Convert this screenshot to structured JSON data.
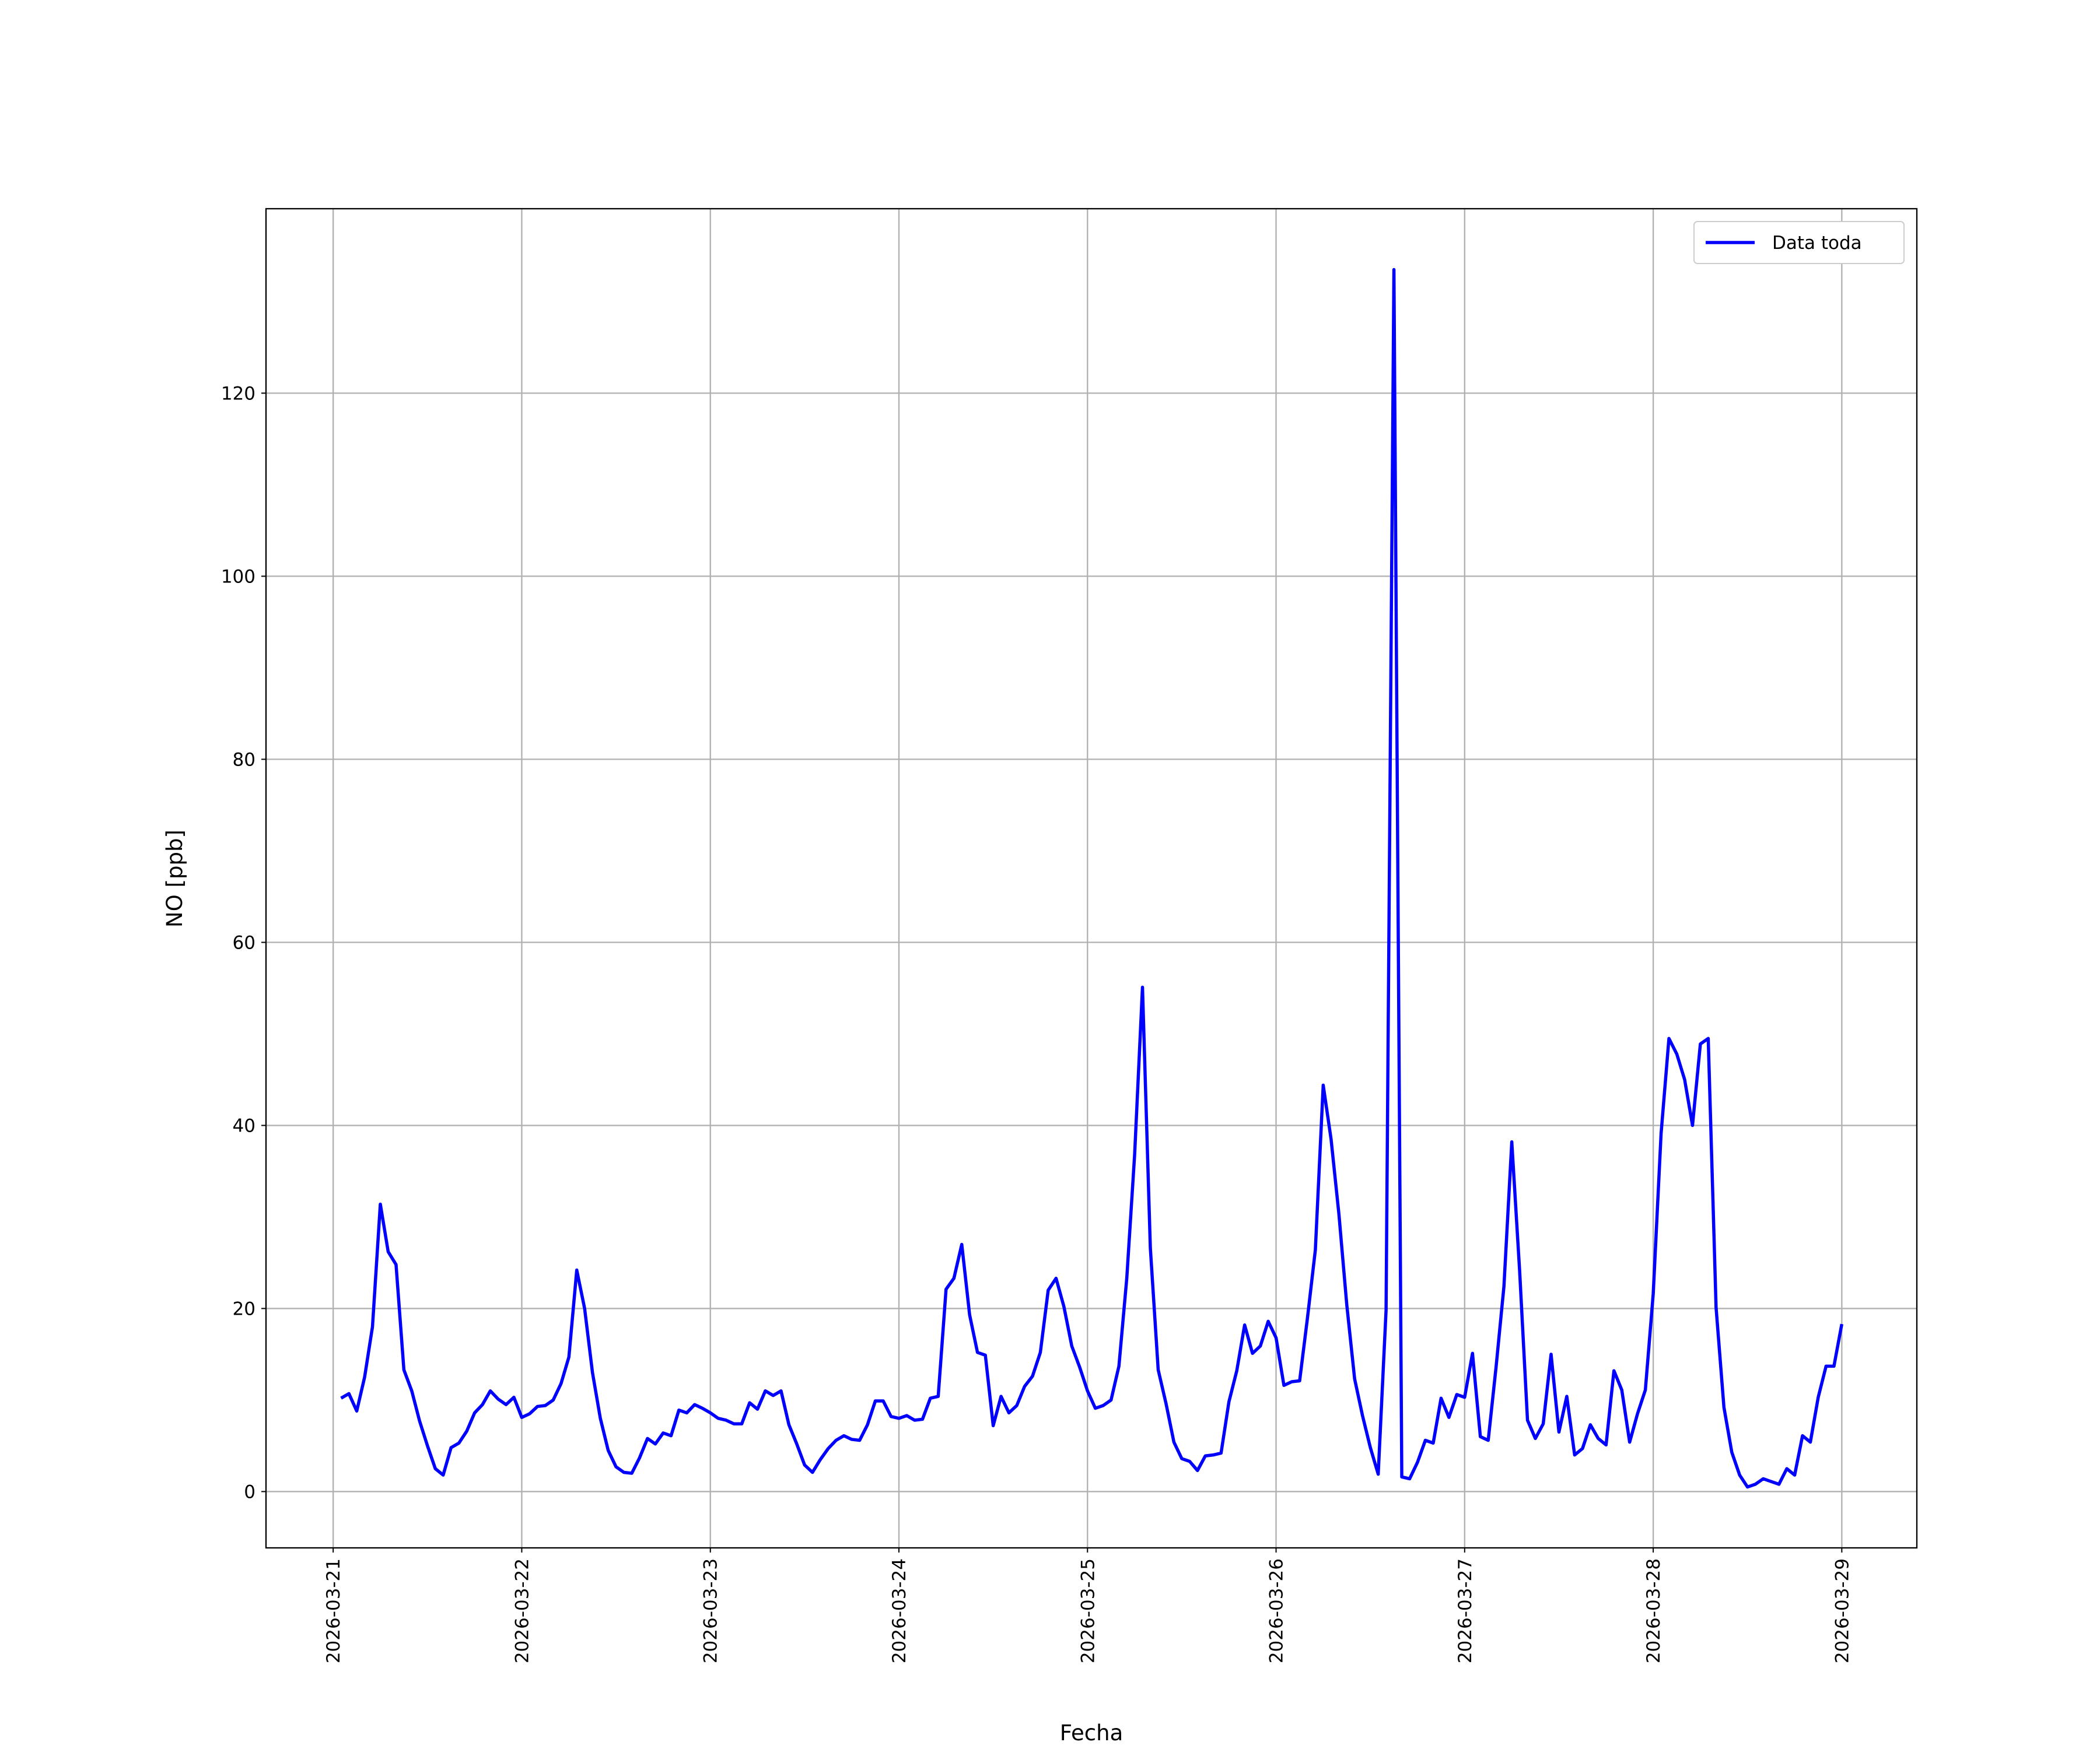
{
  "chart_data": {
    "type": "line",
    "xlabel": "Fecha",
    "ylabel": "NO [ppb]",
    "x": [
      "2026-03-21T01:00",
      "2026-03-21T02:00",
      "2026-03-21T03:00",
      "2026-03-21T04:00",
      "2026-03-21T05:00",
      "2026-03-21T06:00",
      "2026-03-21T07:00",
      "2026-03-21T08:00",
      "2026-03-21T09:00",
      "2026-03-21T10:00",
      "2026-03-21T11:00",
      "2026-03-21T12:00",
      "2026-03-21T13:00",
      "2026-03-21T14:00",
      "2026-03-21T15:00",
      "2026-03-21T16:00",
      "2026-03-21T17:00",
      "2026-03-21T18:00",
      "2026-03-21T19:00",
      "2026-03-21T20:00",
      "2026-03-21T21:00",
      "2026-03-21T22:00",
      "2026-03-21T23:00",
      "2026-03-22T00:00",
      "2026-03-22T01:00",
      "2026-03-22T02:00",
      "2026-03-22T03:00",
      "2026-03-22T04:00",
      "2026-03-22T05:00",
      "2026-03-22T06:00",
      "2026-03-22T07:00",
      "2026-03-22T08:00",
      "2026-03-22T09:00",
      "2026-03-22T10:00",
      "2026-03-22T11:00",
      "2026-03-22T12:00",
      "2026-03-22T13:00",
      "2026-03-22T14:00",
      "2026-03-22T15:00",
      "2026-03-22T16:00",
      "2026-03-22T17:00",
      "2026-03-22T18:00",
      "2026-03-22T19:00",
      "2026-03-22T20:00",
      "2026-03-22T21:00",
      "2026-03-22T22:00",
      "2026-03-22T23:00",
      "2026-03-23T00:00",
      "2026-03-23T01:00",
      "2026-03-23T02:00",
      "2026-03-23T03:00",
      "2026-03-23T04:00",
      "2026-03-23T05:00",
      "2026-03-23T06:00",
      "2026-03-23T07:00",
      "2026-03-23T08:00",
      "2026-03-23T09:00",
      "2026-03-23T10:00",
      "2026-03-23T11:00",
      "2026-03-23T12:00",
      "2026-03-23T13:00",
      "2026-03-23T14:00",
      "2026-03-23T15:00",
      "2026-03-23T16:00",
      "2026-03-23T17:00",
      "2026-03-23T18:00",
      "2026-03-23T19:00",
      "2026-03-23T20:00",
      "2026-03-23T21:00",
      "2026-03-23T22:00",
      "2026-03-23T23:00",
      "2026-03-24T00:00",
      "2026-03-24T01:00",
      "2026-03-24T02:00",
      "2026-03-24T03:00",
      "2026-03-24T04:00",
      "2026-03-24T05:00",
      "2026-03-24T06:00",
      "2026-03-24T07:00",
      "2026-03-24T08:00",
      "2026-03-24T09:00",
      "2026-03-24T10:00",
      "2026-03-24T11:00",
      "2026-03-24T12:00",
      "2026-03-24T13:00",
      "2026-03-24T14:00",
      "2026-03-24T15:00",
      "2026-03-24T16:00",
      "2026-03-24T17:00",
      "2026-03-24T18:00",
      "2026-03-24T19:00",
      "2026-03-24T20:00",
      "2026-03-24T21:00",
      "2026-03-24T22:00",
      "2026-03-24T23:00",
      "2026-03-25T00:00",
      "2026-03-25T01:00",
      "2026-03-25T02:00",
      "2026-03-25T03:00",
      "2026-03-25T04:00",
      "2026-03-25T05:00",
      "2026-03-25T06:00",
      "2026-03-25T07:00",
      "2026-03-25T08:00",
      "2026-03-25T09:00",
      "2026-03-25T10:00",
      "2026-03-25T11:00",
      "2026-03-25T12:00",
      "2026-03-25T13:00",
      "2026-03-25T14:00",
      "2026-03-25T15:00",
      "2026-03-25T16:00",
      "2026-03-25T17:00",
      "2026-03-25T18:00",
      "2026-03-25T19:00",
      "2026-03-25T20:00",
      "2026-03-25T21:00",
      "2026-03-25T22:00",
      "2026-03-25T23:00",
      "2026-03-26T00:00",
      "2026-03-26T01:00",
      "2026-03-26T02:00",
      "2026-03-26T03:00",
      "2026-03-26T04:00",
      "2026-03-26T05:00",
      "2026-03-26T06:00",
      "2026-03-26T07:00",
      "2026-03-26T08:00",
      "2026-03-26T09:00",
      "2026-03-26T10:00",
      "2026-03-26T11:00",
      "2026-03-26T12:00",
      "2026-03-26T13:00",
      "2026-03-26T14:00",
      "2026-03-26T15:00",
      "2026-03-26T16:00",
      "2026-03-26T17:00",
      "2026-03-26T18:00",
      "2026-03-26T19:00",
      "2026-03-26T20:00",
      "2026-03-26T21:00",
      "2026-03-26T22:00",
      "2026-03-26T23:00",
      "2026-03-27T00:00",
      "2026-03-27T01:00",
      "2026-03-27T02:00",
      "2026-03-27T03:00",
      "2026-03-27T04:00",
      "2026-03-27T05:00",
      "2026-03-27T06:00",
      "2026-03-27T07:00",
      "2026-03-27T08:00",
      "2026-03-27T09:00",
      "2026-03-27T10:00",
      "2026-03-27T11:00",
      "2026-03-27T12:00",
      "2026-03-27T13:00",
      "2026-03-27T14:00",
      "2026-03-27T15:00",
      "2026-03-27T16:00",
      "2026-03-27T17:00",
      "2026-03-27T18:00",
      "2026-03-27T19:00",
      "2026-03-27T20:00",
      "2026-03-27T21:00",
      "2026-03-27T22:00",
      "2026-03-27T23:00",
      "2026-03-28T00:00",
      "2026-03-28T01:00",
      "2026-03-28T02:00",
      "2026-03-28T03:00",
      "2026-03-28T04:00",
      "2026-03-28T05:00",
      "2026-03-28T06:00",
      "2026-03-28T07:00",
      "2026-03-28T08:00",
      "2026-03-28T09:00",
      "2026-03-28T10:00",
      "2026-03-28T11:00",
      "2026-03-28T12:00",
      "2026-03-28T13:00",
      "2026-03-28T14:00",
      "2026-03-28T15:00",
      "2026-03-28T16:00",
      "2026-03-28T17:00",
      "2026-03-28T18:00",
      "2026-03-28T19:00",
      "2026-03-28T20:00",
      "2026-03-28T21:00",
      "2026-03-28T22:00",
      "2026-03-28T23:00",
      "2026-03-29T00:00"
    ],
    "series": [
      {
        "name": "Data toda",
        "color": "#0000ff",
        "values": [
          10.2,
          10.7,
          8.8,
          12.5,
          18,
          31.4,
          26.2,
          24.8,
          13.3,
          11,
          7.7,
          5,
          2.5,
          1.8,
          4.8,
          5.3,
          6.6,
          8.6,
          9.5,
          11,
          10.1,
          9.5,
          10.3,
          8.1,
          8.5,
          9.3,
          9.4,
          10,
          11.8,
          14.7,
          24.2,
          20,
          13,
          8,
          4.5,
          2.7,
          2.1,
          2,
          3.7,
          5.8,
          5.2,
          6.4,
          6.1,
          8.9,
          8.6,
          9.5,
          9.1,
          8.6,
          8,
          7.8,
          7.4,
          7.4,
          9.7,
          9,
          11,
          10.5,
          11,
          7.3,
          5.2,
          2.9,
          2.1,
          3.5,
          4.7,
          5.6,
          6.1,
          5.7,
          5.6,
          7.3,
          9.9,
          9.9,
          8.2,
          8,
          8.3,
          7.8,
          7.9,
          10.2,
          10.4,
          22.1,
          23.3,
          27,
          19.3,
          15.2,
          14.9,
          7.2,
          10.4,
          8.6,
          9.4,
          11.5,
          12.6,
          15.2,
          22,
          23.3,
          20.2,
          15.9,
          13.6,
          11,
          9.1,
          9.4,
          10,
          13.7,
          23.3,
          36.8,
          55.1,
          26.6,
          13.3,
          9.6,
          5.4,
          3.6,
          3.3,
          2.3,
          3.9,
          4,
          4.2,
          9.8,
          13.2,
          18.2,
          15.1,
          15.9,
          18.6,
          16.8,
          11.6,
          12,
          12.1,
          19,
          26.4,
          44.4,
          38.5,
          30.3,
          20.4,
          12.3,
          8.3,
          4.8,
          1.9,
          19.8,
          133.5,
          1.6,
          1.4,
          3.2,
          5.6,
          5.3,
          10.2,
          8.1,
          10.6,
          10.3,
          15.1,
          6,
          5.6,
          13.6,
          22.4,
          38.2,
          24.1,
          7.8,
          5.8,
          7.4,
          15,
          6.5,
          10.4,
          4,
          4.7,
          7.3,
          5.8,
          5.1,
          13.2,
          11.1,
          5.4,
          8.5,
          11.1,
          21.6,
          39.1,
          49.5,
          47.8,
          45,
          40,
          48.9,
          49.5,
          20.1,
          9.2,
          4.3,
          1.8,
          0.5,
          0.8,
          1.4,
          1.1,
          0.8,
          2.5,
          1.8,
          6.1,
          5.4,
          10.3,
          13.7,
          13.7,
          18.3
        ]
      }
    ],
    "xlim": [
      "2026-03-20T15:27",
      "2026-03-29T09:33"
    ],
    "xticks": [
      "2026-03-21",
      "2026-03-22",
      "2026-03-23",
      "2026-03-24",
      "2026-03-25",
      "2026-03-26",
      "2026-03-27",
      "2026-03-28",
      "2026-03-29"
    ],
    "ylim": [
      -6.15,
      140.15
    ],
    "yticks": [
      0,
      20,
      40,
      60,
      80,
      100,
      120
    ],
    "grid": true,
    "legend": "upper right"
  }
}
